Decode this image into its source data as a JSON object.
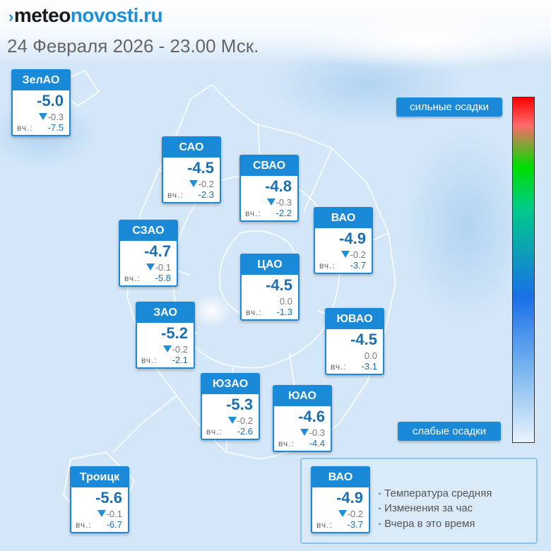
{
  "header": {
    "logo_prefix": "meteo",
    "logo_suffix": "novosti.ru",
    "subtitle": "24 Февраля 2026 - 23.00 Мск."
  },
  "precip_scale": {
    "high_label": "сильные осадки",
    "low_label": "слабые осадки"
  },
  "yesterday_label": "вч.:",
  "stations": [
    {
      "name": "ЗелАО",
      "temp": "-5.0",
      "change": "-0.3",
      "trend": "down",
      "yesterday": "-7.5"
    },
    {
      "name": "САО",
      "temp": "-4.5",
      "change": "-0.2",
      "trend": "down",
      "yesterday": "-2.3"
    },
    {
      "name": "СВАО",
      "temp": "-4.8",
      "change": "-0.3",
      "trend": "down",
      "yesterday": "-2.2"
    },
    {
      "name": "ВАО",
      "temp": "-4.9",
      "change": "-0.2",
      "trend": "down",
      "yesterday": "-3.7"
    },
    {
      "name": "СЗАО",
      "temp": "-4.7",
      "change": "-0.1",
      "trend": "down",
      "yesterday": "-5.8"
    },
    {
      "name": "ЦАО",
      "temp": "-4.5",
      "change": "0.0",
      "trend": "none",
      "yesterday": "-1.3"
    },
    {
      "name": "ЗАО",
      "temp": "-5.2",
      "change": "-0.2",
      "trend": "down",
      "yesterday": "-2.1"
    },
    {
      "name": "ЮВАО",
      "temp": "-4.5",
      "change": "0.0",
      "trend": "none",
      "yesterday": "-3.1"
    },
    {
      "name": "ЮЗАО",
      "temp": "-5.3",
      "change": "-0.2",
      "trend": "down",
      "yesterday": "-2.6"
    },
    {
      "name": "ЮАО",
      "temp": "-4.6",
      "change": "-0.3",
      "trend": "down",
      "yesterday": "-4.4"
    },
    {
      "name": "Троицк",
      "temp": "-5.6",
      "change": "-0.1",
      "trend": "down",
      "yesterday": "-6.7"
    }
  ],
  "legend": {
    "sample": {
      "name": "ВАО",
      "temp": "-4.9",
      "change": "-0.2",
      "trend": "down",
      "yesterday": "-3.7"
    },
    "items": [
      "- Температура средняя",
      "- Изменения за час",
      "- Вчера в это время"
    ]
  },
  "colors": {
    "accent": "#1a8ad8",
    "temp_text": "#1a6fb0",
    "trend_down": "#1f8fd6"
  }
}
